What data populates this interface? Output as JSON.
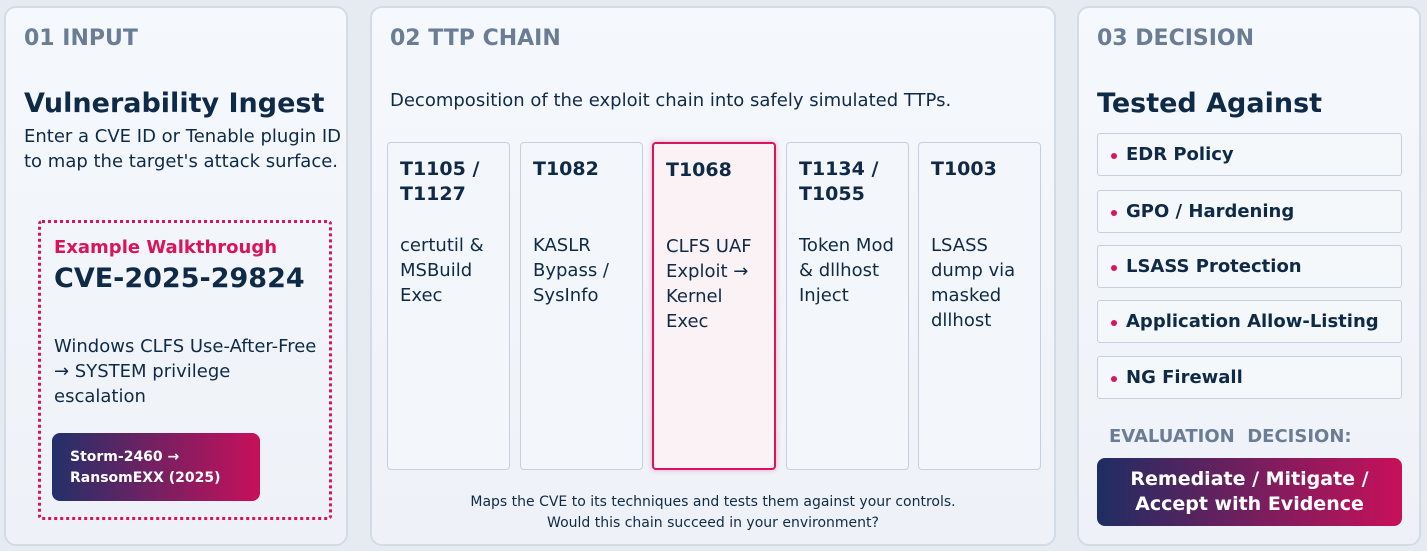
{
  "input": {
    "header": "01 INPUT",
    "title": "Vulnerability Ingest",
    "description": "Enter a CVE ID or Tenable plugin ID to map the target's attack surface.",
    "example": {
      "label": "Example Walkthrough",
      "cve": "CVE-2025-29824",
      "summary": "Windows CLFS Use-After-Free → SYSTEM privilege escalation",
      "badge": "Storm-2460 → RansomEXX (2025)"
    }
  },
  "ttp_chain": {
    "header": "02 TTP CHAIN",
    "description": "Decomposition of the exploit chain into safely simulated TTPs.",
    "cards": [
      {
        "id": "T1105 / T1127",
        "text": "certutil & MSBuild Exec"
      },
      {
        "id": "T1082",
        "text": "KASLR Bypass / SysInfo"
      },
      {
        "id": "T1068",
        "text": "CLFS UAF Exploit → Kernel Exec"
      },
      {
        "id": "T1134 / T1055",
        "text": "Token Mod & dllhost Inject"
      },
      {
        "id": "T1003",
        "text": "LSASS dump via masked dllhost"
      }
    ],
    "footer": [
      "Maps the CVE to its techniques and tests them against your controls.",
      "Would this chain succeed in your environment?"
    ]
  },
  "decision": {
    "header": "03 DECISION",
    "title": "Tested Against",
    "controls": [
      "EDR Policy",
      "GPO / Hardening",
      "LSASS Protection",
      "Application Allow-Listing",
      "NG Firewall"
    ],
    "evaluation_label": "EVALUATION  DECISION:",
    "button": "Remediate / Mitigate / Accept with Evidence"
  }
}
